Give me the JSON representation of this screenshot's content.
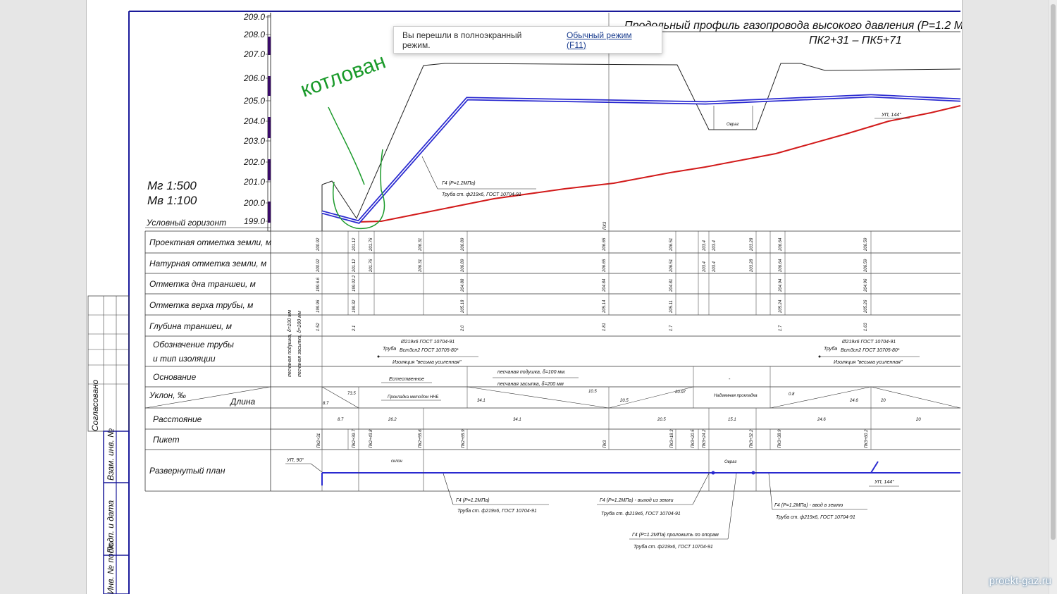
{
  "drawing": {
    "title_line1": "Продольный профиль газопровода высокого давления (Р=1.2 МПа)",
    "title_line2": "ПК2+31 – ПК5+71",
    "scale_horizontal": "Мг 1:500",
    "scale_vertical": "Мв 1:100",
    "datum_label": "Условный горизонт",
    "handwritten_note": "котлован",
    "elevation_scale": [
      "209.0",
      "208.0",
      "207.0",
      "206.0",
      "205.0",
      "204.0",
      "203.0",
      "202.0",
      "201.0",
      "200.0",
      "199.0"
    ],
    "row_headers": {
      "design_ground": "Проектная отметка земли, м",
      "natural_ground": "Натурная отметка земли, м",
      "trench_bottom": "Отметка дна траншеи, м",
      "pipe_top": "Отметка верха трубы, м",
      "trench_depth": "Глубина траншеи, м",
      "pipe_designation_1": "Обозначение трубы",
      "pipe_designation_2": "и тип изоляции",
      "base": "Основание",
      "slope": "Уклон, ‰",
      "length": "Длина",
      "distance": "Расстояние",
      "picket": "Пикет",
      "plan": "Развернутый план"
    },
    "design_ground_values": [
      "200.92",
      "201.12",
      "201.76",
      "206.31",
      "206.89",
      "206.65",
      "206.51",
      "203.4",
      "203.4",
      "203.28",
      "206.64",
      "206.59"
    ],
    "natural_ground_values": [
      "200.92",
      "201.12",
      "201.76",
      "206.31",
      "206.89",
      "206.65",
      "206.51",
      "203.4",
      "203.4",
      "203.28",
      "206.64",
      "206.59"
    ],
    "trench_bottom_values": [
      "199.6.6",
      "199.02.2",
      "204.88",
      "204.84",
      "204.81",
      "204.94",
      "204.96"
    ],
    "pipe_top_values": [
      "199.96",
      "199.32",
      "205.18",
      "205.14",
      "205.11",
      "205.24",
      "205.26"
    ],
    "trench_depth_values": [
      "1.52",
      "2.1",
      "2.0",
      "1.81",
      "1.7",
      "1.7",
      "1.63"
    ],
    "sand_cushion_note": "песчаная подушка, δ=100 мм",
    "sand_backfill_note": "песчаная засыпка, δ=200 мм",
    "pipe_spec_left": {
      "line1": "Ø219х6 ГОСТ 10704-91",
      "prefix": "Труба",
      "line2": "Вст3сп2 ГОСТ 10705-80*",
      "line3": "Изоляция \"весьма усиленная\""
    },
    "pipe_spec_right": {
      "line1": "Ø219х6 ГОСТ 10704-91",
      "prefix": "Труба",
      "line2": "Вст3сп2 ГОСТ 10705-80*",
      "line3": "Изоляция \"весьма усиленная\""
    },
    "base_natural": "Естественное",
    "base_sand_1": "песчаная подушка, δ=100 мм.",
    "base_sand_2": "песчаная засыпка, δ=200 мм",
    "base_dash": "-",
    "slope_cells": {
      "s1_slope": "73.5",
      "s1_len": "8.7",
      "hnb": "Прокладка методом ННБ",
      "s2_len": "34.1",
      "s3_slope": "10.5",
      "s3_len": "20.5",
      "s4_slope": "20.97",
      "overhead": "Надземная прокладка",
      "s5_slope": "0.8",
      "s5_len": "24.6",
      "s6_len": "20"
    },
    "distances": [
      "8.7",
      "26.2",
      "34.1",
      "20.5",
      "15.1",
      "24.6",
      "20"
    ],
    "pickets": [
      "ПК2+31",
      "ПК2+39.7",
      "ПК2+43.8",
      "ПК2+55.6",
      "ПК2+65.9",
      "ПК3",
      "ПК3+18.3",
      "ПК3+20.5",
      "ПК3+24.2",
      "ПК3+32.2",
      "ПК3+38.9",
      "ПК3+60.2"
    ],
    "pk3_marker": "ПК3",
    "profile_labels": {
      "g4": "Г4 (Р=1.2МПа)",
      "pipe": "Труба ст. ф219х6, ГОСТ 10704-91",
      "ravine": "Овраг",
      "angle_right": "УП, 144°"
    },
    "plan_labels": {
      "angle_left": "УП, 90°",
      "slope": "склон",
      "ravine": "Овраг",
      "angle_right": "УП, 144°",
      "c1_line1": "Г4 (Р=1.2МПа)",
      "c1_line2": "Труба ст. ф219х6, ГОСТ 10704-91",
      "c2_line1": "Г4 (Р=1.2МПа) - выход из земли",
      "c2_line2": "Труба ст. ф219х6, ГОСТ 10704-91",
      "c3_line1": "Г4 (Р=1.2МПа) проложить по опорам",
      "c3_line2": "Труба ст. ф219х6, ГОСТ 10704-91",
      "c4_line1": "Г4 (Р=1.2МПа) - ввод в землю",
      "c4_line2": "Труба ст. ф219х6, ГОСТ 10704-91"
    },
    "side_stamp": {
      "agreed": "Согласовано",
      "inv_replace": "Взам. инв. №",
      "sign_date": "Подп. и дата",
      "inv_orig": "Инв. № подл."
    }
  },
  "toast": {
    "message": "Вы перешли в полноэкранный режим.",
    "link": "Обычный режим (F11)"
  },
  "watermark": "proekt-gaz.ru",
  "colors": {
    "pipe": "#2a2ad0",
    "ground_red": "#d21a1a",
    "handwriting_green": "#1a9a2a",
    "scale_purple": "#3a0a6a"
  }
}
